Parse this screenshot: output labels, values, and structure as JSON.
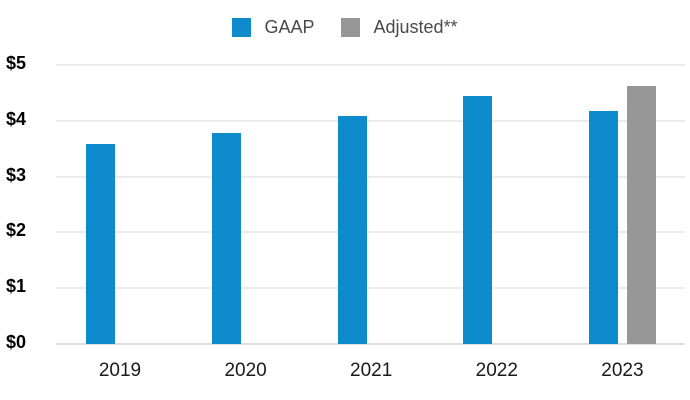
{
  "chart": {
    "legend": {
      "items": [
        {
          "label": "GAAP",
          "color": "#0e8bcd"
        },
        {
          "label": "Adjusted**",
          "color": "#979797"
        }
      ]
    }
  },
  "chart_data": {
    "type": "bar",
    "title": "",
    "categories": [
      "2019",
      "2020",
      "2021",
      "2022",
      "2023"
    ],
    "series": [
      {
        "name": "GAAP",
        "color": "#0e8bcd",
        "values": [
          3.58,
          3.79,
          4.08,
          4.45,
          4.18
        ]
      },
      {
        "name": "Adjusted**",
        "color": "#979797",
        "values": [
          null,
          null,
          null,
          null,
          4.62
        ]
      }
    ],
    "xlabel": "",
    "ylabel": "",
    "ylim": [
      0,
      5
    ],
    "y_tick_prefix": "$",
    "y_ticks": [
      {
        "label": "$5",
        "value": 5
      },
      {
        "label": "$4",
        "value": 4
      },
      {
        "label": "$3",
        "value": 3
      },
      {
        "label": "$2",
        "value": 2
      },
      {
        "label": "$1",
        "value": 1
      },
      {
        "label": "$0",
        "value": 0
      }
    ],
    "grid": true,
    "legend_position": "top"
  }
}
